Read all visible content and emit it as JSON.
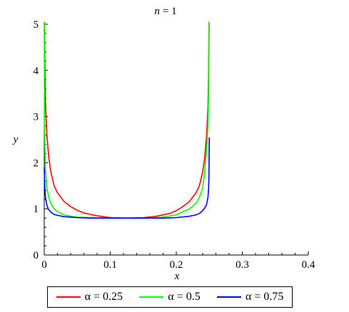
{
  "chart_data": {
    "type": "line",
    "title": "n = 1",
    "title_var": "n",
    "title_value": "= 1",
    "xlabel": "x",
    "ylabel": "y",
    "xlim": [
      0,
      0.4
    ],
    "ylim": [
      0,
      5
    ],
    "xticks": [
      0,
      0.1,
      0.2,
      0.3,
      0.4
    ],
    "xtick_labels": [
      "0",
      "0.1",
      "0.2",
      "0.3",
      "0.4"
    ],
    "yticks": [
      0,
      1,
      2,
      3,
      4,
      5
    ],
    "ytick_labels": [
      "0",
      "1",
      "2",
      "3",
      "4",
      "5"
    ],
    "grid": false,
    "legend_position": "bottom",
    "series": [
      {
        "name": "α = 0.25",
        "color": "#ff0000",
        "x": [
          0.0003,
          0.001,
          0.002,
          0.004,
          0.007,
          0.01,
          0.015,
          0.02,
          0.03,
          0.04,
          0.05,
          0.06,
          0.08,
          0.1,
          0.125,
          0.15,
          0.17,
          0.19,
          0.2,
          0.21,
          0.22,
          0.23,
          0.235,
          0.24,
          0.243,
          0.246,
          0.248,
          0.249,
          0.2497
        ],
        "y": [
          5.05,
          4.0,
          3.2,
          2.6,
          2.1,
          1.8,
          1.5,
          1.35,
          1.16,
          1.05,
          0.97,
          0.91,
          0.85,
          0.81,
          0.8,
          0.81,
          0.84,
          0.9,
          0.96,
          1.05,
          1.16,
          1.35,
          1.5,
          1.8,
          2.1,
          2.6,
          3.2,
          4.0,
          5.05
        ]
      },
      {
        "name": "α = 0.5",
        "color": "#00ff00",
        "x": [
          0.0,
          0.0005,
          0.001,
          0.002,
          0.004,
          0.007,
          0.01,
          0.015,
          0.02,
          0.03,
          0.04,
          0.05,
          0.07,
          0.1,
          0.125,
          0.15,
          0.18,
          0.2,
          0.21,
          0.22,
          0.23,
          0.235,
          0.24,
          0.243,
          0.246,
          0.248,
          0.249,
          0.2495,
          0.2499
        ],
        "y": [
          5.05,
          2.8,
          2.3,
          1.8,
          1.45,
          1.25,
          1.12,
          1.0,
          0.94,
          0.87,
          0.84,
          0.82,
          0.81,
          0.8,
          0.8,
          0.8,
          0.82,
          0.87,
          0.94,
          1.0,
          1.12,
          1.25,
          1.45,
          1.8,
          2.3,
          2.8,
          3.6,
          4.3,
          5.05
        ]
      },
      {
        "name": "α = 0.75",
        "color": "#0000ff",
        "x": [
          0.0,
          0.0005,
          0.001,
          0.002,
          0.004,
          0.006,
          0.01,
          0.015,
          0.02,
          0.03,
          0.05,
          0.07,
          0.1,
          0.125,
          0.15,
          0.18,
          0.2,
          0.22,
          0.23,
          0.235,
          0.24,
          0.244,
          0.246,
          0.248,
          0.249,
          0.2495,
          0.25
        ],
        "y": [
          1.9,
          1.6,
          1.42,
          1.23,
          1.08,
          1.0,
          0.93,
          0.88,
          0.86,
          0.83,
          0.81,
          0.8,
          0.8,
          0.8,
          0.8,
          0.8,
          0.81,
          0.84,
          0.87,
          0.9,
          0.96,
          1.04,
          1.1,
          1.25,
          1.45,
          1.7,
          2.55
        ]
      }
    ]
  }
}
